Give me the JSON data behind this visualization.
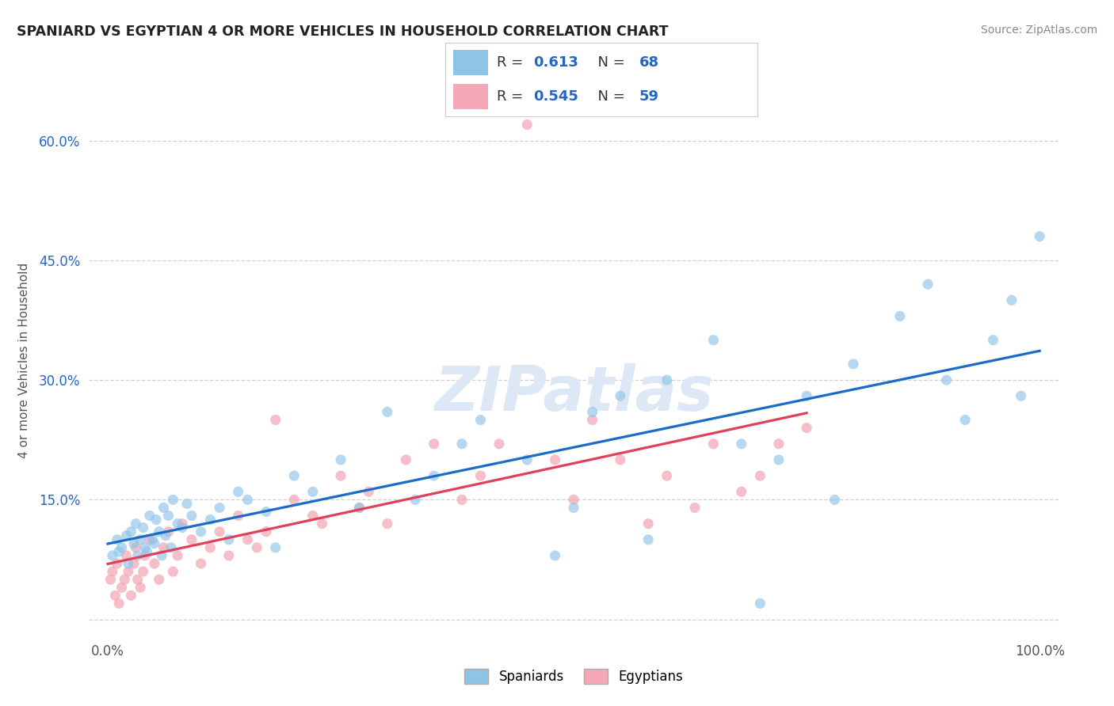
{
  "title": "SPANIARD VS EGYPTIAN 4 OR MORE VEHICLES IN HOUSEHOLD CORRELATION CHART",
  "source": "Source: ZipAtlas.com",
  "ylabel": "4 or more Vehicles in Household",
  "xlim": [
    -2,
    102
  ],
  "ylim": [
    -2,
    67
  ],
  "spaniard_color": "#8ec4e8",
  "egyptian_color": "#f4a8b8",
  "spaniard_line_color": "#1a6cc8",
  "egyptian_line_color": "#e0405a",
  "background_color": "#ffffff",
  "grid_color": "#cccccc",
  "watermark_color": "#dce8f5",
  "spaniard_x": [
    0.5,
    1.0,
    1.2,
    1.5,
    2.0,
    2.2,
    2.5,
    2.8,
    3.0,
    3.2,
    3.5,
    3.8,
    4.0,
    4.2,
    4.5,
    4.8,
    5.0,
    5.2,
    5.5,
    5.8,
    6.0,
    6.2,
    6.5,
    6.8,
    7.0,
    7.5,
    8.0,
    8.5,
    9.0,
    10.0,
    11.0,
    12.0,
    13.0,
    14.0,
    15.0,
    17.0,
    18.0,
    20.0,
    22.0,
    25.0,
    27.0,
    30.0,
    33.0,
    35.0,
    38.0,
    40.0,
    45.0,
    48.0,
    50.0,
    52.0,
    55.0,
    58.0,
    60.0,
    65.0,
    68.0,
    70.0,
    72.0,
    75.0,
    78.0,
    80.0,
    85.0,
    88.0,
    90.0,
    92.0,
    95.0,
    97.0,
    98.0,
    100.0
  ],
  "spaniard_y": [
    8.0,
    10.0,
    8.5,
    9.0,
    10.5,
    7.0,
    11.0,
    9.5,
    12.0,
    8.0,
    10.0,
    11.5,
    9.0,
    8.5,
    13.0,
    10.0,
    9.5,
    12.5,
    11.0,
    8.0,
    14.0,
    10.5,
    13.0,
    9.0,
    15.0,
    12.0,
    11.5,
    14.5,
    13.0,
    11.0,
    12.5,
    14.0,
    10.0,
    16.0,
    15.0,
    13.5,
    9.0,
    18.0,
    16.0,
    20.0,
    14.0,
    26.0,
    15.0,
    18.0,
    22.0,
    25.0,
    20.0,
    8.0,
    14.0,
    26.0,
    28.0,
    10.0,
    30.0,
    35.0,
    22.0,
    2.0,
    20.0,
    28.0,
    15.0,
    32.0,
    38.0,
    42.0,
    30.0,
    25.0,
    35.0,
    40.0,
    28.0,
    48.0
  ],
  "egyptian_x": [
    0.3,
    0.5,
    0.8,
    1.0,
    1.2,
    1.5,
    1.8,
    2.0,
    2.2,
    2.5,
    2.8,
    3.0,
    3.2,
    3.5,
    3.8,
    4.0,
    4.5,
    5.0,
    5.5,
    6.0,
    6.5,
    7.0,
    7.5,
    8.0,
    9.0,
    10.0,
    11.0,
    12.0,
    13.0,
    14.0,
    15.0,
    16.0,
    17.0,
    18.0,
    20.0,
    22.0,
    23.0,
    25.0,
    27.0,
    28.0,
    30.0,
    32.0,
    35.0,
    38.0,
    40.0,
    42.0,
    45.0,
    48.0,
    50.0,
    52.0,
    55.0,
    58.0,
    60.0,
    63.0,
    65.0,
    68.0,
    70.0,
    72.0,
    75.0
  ],
  "egyptian_y": [
    5.0,
    6.0,
    3.0,
    7.0,
    2.0,
    4.0,
    5.0,
    8.0,
    6.0,
    3.0,
    7.0,
    9.0,
    5.0,
    4.0,
    6.0,
    8.0,
    10.0,
    7.0,
    5.0,
    9.0,
    11.0,
    6.0,
    8.0,
    12.0,
    10.0,
    7.0,
    9.0,
    11.0,
    8.0,
    13.0,
    10.0,
    9.0,
    11.0,
    25.0,
    15.0,
    13.0,
    12.0,
    18.0,
    14.0,
    16.0,
    12.0,
    20.0,
    22.0,
    15.0,
    18.0,
    22.0,
    62.0,
    20.0,
    15.0,
    25.0,
    20.0,
    12.0,
    18.0,
    14.0,
    22.0,
    16.0,
    18.0,
    22.0,
    24.0
  ],
  "ytick_vals": [
    0,
    15,
    30,
    45,
    60
  ],
  "ytick_labels": [
    "",
    "15.0%",
    "30.0%",
    "45.0%",
    "60.0%"
  ],
  "xtick_vals": [
    0,
    100
  ],
  "xtick_labels": [
    "0.0%",
    "100.0%"
  ],
  "legend_blue_r": "0.613",
  "legend_blue_n": "68",
  "legend_pink_r": "0.545",
  "legend_pink_n": "59",
  "bottom_label1": "Spaniards",
  "bottom_label2": "Egyptians"
}
